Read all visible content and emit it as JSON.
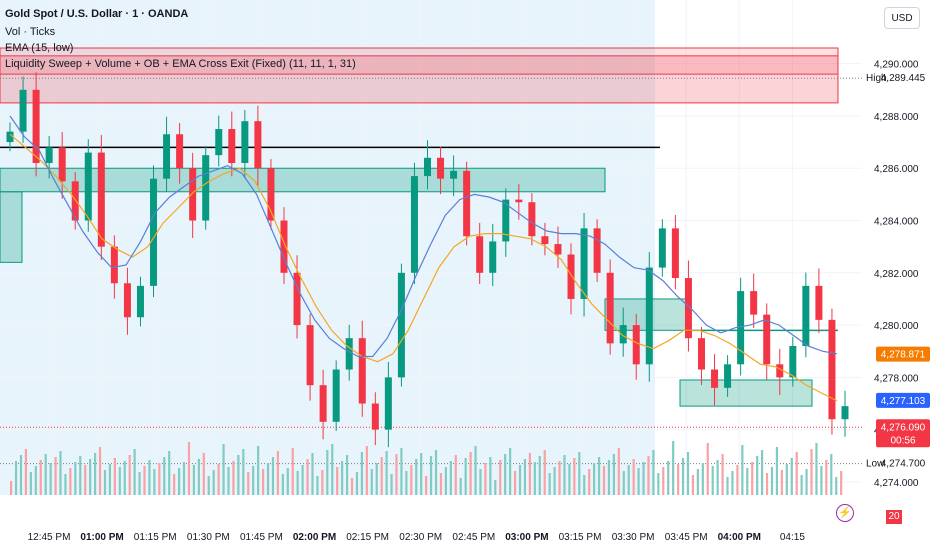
{
  "header": {
    "title": "Gold Spot / U.S. Dollar · 1 · OANDA",
    "indicators": [
      "Vol · Ticks",
      "EMA (15, low)",
      "Liquidity Sweep + Volume + OB + EMA Cross Exit (Fixed) (11, 11, 1, 31)"
    ],
    "currency": "USD"
  },
  "chart_data": {
    "type": "candlestick",
    "symbol": "Gold Spot / U.S. Dollar",
    "interval": "1",
    "ylim": [
      4273.5,
      4290.6
    ],
    "y_ticks": [
      4274,
      4276,
      4278,
      4280,
      4282,
      4284,
      4286,
      4288,
      4290
    ],
    "y_tick_labels": [
      "4,274.000",
      "4,276.000",
      "4,278.000",
      "4,280.000",
      "4,282.000",
      "4,284.000",
      "4,286.000",
      "4,288.000",
      "4,290.000"
    ],
    "x_tick_labels": [
      "12:45 PM",
      "01:00 PM",
      "01:15 PM",
      "01:30 PM",
      "01:45 PM",
      "02:00 PM",
      "02:15 PM",
      "02:30 PM",
      "02:45 PM",
      "03:00 PM",
      "03:15 PM",
      "03:30 PM",
      "03:45 PM",
      "04:00 PM",
      "04:15"
    ],
    "bold_x_labels": [
      "01:00 PM",
      "02:00 PM",
      "03:00 PM",
      "04:00 PM"
    ],
    "close_path": [
      4287.4,
      4289.0,
      4286.2,
      4286.8,
      4285.5,
      4284.0,
      4286.6,
      4283.0,
      4281.6,
      4280.3,
      4281.5,
      4285.6,
      4287.3,
      4286.0,
      4284.0,
      4286.5,
      4287.5,
      4286.2,
      4287.8,
      4286.0,
      4284.0,
      4282.0,
      4280.0,
      4277.7,
      4276.3,
      4278.3,
      4279.5,
      4277.0,
      4276.0,
      4278.0,
      4282.0,
      4285.7,
      4286.4,
      4285.6,
      4285.9,
      4283.4,
      4282.0,
      4283.2,
      4284.8,
      4284.7,
      4283.4,
      4283.1,
      4282.7,
      4281.0,
      4283.7,
      4282.0,
      4279.3,
      4280.0,
      4278.5,
      4282.2,
      4283.7,
      4281.8,
      4279.5,
      4278.3,
      4277.6,
      4278.5,
      4281.3,
      4280.4,
      4278.5,
      4278.0,
      4279.2,
      4281.5,
      4280.2,
      4276.4,
      4276.9
    ],
    "ema_fast_path": [
      4288.0,
      4287.2,
      4286.7,
      4285.6,
      4284.6,
      4283.6,
      4282.8,
      4282.2,
      4282.3,
      4283.2,
      4284.3,
      4284.9,
      4285.3,
      4285.7,
      4285.9,
      4286.1,
      4285.8,
      4285.0,
      4283.7,
      4282.4,
      4281.2,
      4280.2,
      4279.5,
      4279.1,
      4278.8,
      4278.8,
      4279.5,
      4280.6,
      4281.9,
      4283.1,
      4284.2,
      4284.8,
      4285.0,
      4284.9,
      4284.7,
      4284.3,
      4283.9,
      4283.6,
      4283.5,
      4283.5,
      4283.4,
      4283.1,
      4282.6,
      4282.2,
      4282.1,
      4281.7,
      4281.1,
      4280.6,
      4280.0,
      4279.7,
      4279.9,
      4280.0,
      4280.2,
      4280.0,
      4279.6,
      4279.2,
      4279.0,
      4278.9
    ],
    "ema_slow_path": [
      4287.3,
      4286.8,
      4286.3,
      4285.7,
      4285.0,
      4284.2,
      4283.3,
      4282.9,
      4282.6,
      4283.0,
      4283.9,
      4284.5,
      4285.1,
      4285.5,
      4285.8,
      4286.0,
      4285.5,
      4284.4,
      4283.0,
      4281.8,
      4280.7,
      4279.8,
      4279.2,
      4278.8,
      4278.6,
      4278.9,
      4279.8,
      4281.0,
      4282.2,
      4283.0,
      4283.4,
      4283.5,
      4283.5,
      4283.4,
      4283.3,
      4283.0,
      4282.5,
      4281.6,
      4280.8,
      4280.2,
      4279.6,
      4279.3,
      4279.1,
      4279.4,
      4279.8,
      4279.8,
      4279.6,
      4279.3,
      4278.9,
      4278.5,
      4278.4,
      4278.1,
      4277.7,
      4277.4,
      4277.1
    ],
    "zones": [
      {
        "kind": "supply",
        "color": "#f23645",
        "top": 4290.3,
        "bottom": 4288.5
      },
      {
        "kind": "demand",
        "color": "#089981",
        "top": 4286.0,
        "bottom": 4285.1
      },
      {
        "kind": "demand",
        "color": "#089981",
        "top": 4285.1,
        "bottom": 4282.4
      },
      {
        "kind": "demand",
        "color": "#089981",
        "top": 4281.0,
        "bottom": 4279.8
      },
      {
        "kind": "demand",
        "color": "#089981",
        "top": 4277.9,
        "bottom": 4276.9
      }
    ],
    "lines": [
      {
        "kind": "liquidity",
        "color": "#000000",
        "y": 4286.8
      },
      {
        "kind": "level",
        "color": "#089981",
        "y": 4279.8
      }
    ],
    "price_labels": [
      {
        "text": "4,289.445",
        "prefix": "High",
        "y": 4289.445,
        "style": "high"
      },
      {
        "text": "4,278.871",
        "y": 4278.871,
        "style": "orange"
      },
      {
        "text": "4,277.103",
        "y": 4277.103,
        "style": "blue"
      },
      {
        "text": "4,276.090",
        "countdown": "00:56",
        "y": 4276.09,
        "style": "red"
      },
      {
        "text": "4,274.700",
        "prefix": "Low",
        "y": 4274.7,
        "style": "low"
      }
    ],
    "last_price": 4276.09,
    "volume_last": "20",
    "colors": {
      "up": "#089981",
      "down": "#f23645",
      "ema_fast": "#5b7fd6",
      "ema_slow": "#f5a623",
      "shade": "#e8f4fb"
    }
  }
}
